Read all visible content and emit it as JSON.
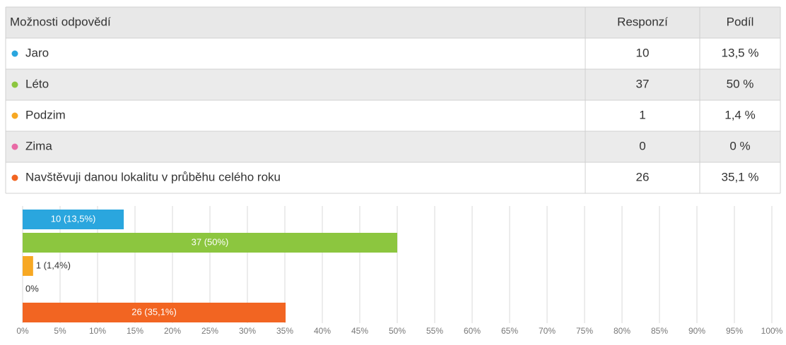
{
  "table": {
    "header": [
      "Možnosti odpovědí",
      "Responzí",
      "Podíl"
    ],
    "rows": [
      [
        "Jaro",
        10,
        "13,5 %"
      ],
      [
        "Léto",
        37,
        "50 %"
      ],
      [
        "Podzim",
        1,
        "1,4 %"
      ],
      [
        "Zima",
        0,
        "0 %"
      ],
      [
        "Navštěvuji danou lokalitu v průběhu celého roku",
        26,
        "35,1 %"
      ]
    ]
  },
  "chart_data": {
    "type": "hbar",
    "values": [
      13.5,
      50,
      1.4,
      0,
      35.1
    ],
    "value_labels": [
      "10 (13,5%)",
      "37 (50%)",
      "1 (1,4%)",
      "0%",
      "26 (35,1%)"
    ],
    "colors": [
      "#2aa6de",
      "#8cc63f",
      "#f7a823",
      "#e86aa5",
      "#f26522"
    ],
    "xlim": [
      0,
      100
    ],
    "xticks": [
      {
        "value": 0,
        "label": "0%"
      },
      {
        "value": 5,
        "label": "5%"
      },
      {
        "value": 10,
        "label": "10%"
      },
      {
        "value": 15,
        "label": "15%"
      },
      {
        "value": 20,
        "label": "20%"
      },
      {
        "value": 25,
        "label": "25%"
      },
      {
        "value": 30,
        "label": "30%"
      },
      {
        "value": 35,
        "label": "35%"
      },
      {
        "value": 40,
        "label": "40%"
      },
      {
        "value": 45,
        "label": "45%"
      },
      {
        "value": 50,
        "label": "50%"
      },
      {
        "value": 55,
        "label": "55%"
      },
      {
        "value": 60,
        "label": "60%"
      },
      {
        "value": 65,
        "label": "65%"
      },
      {
        "value": 70,
        "label": "70%"
      },
      {
        "value": 75,
        "label": "75%"
      },
      {
        "value": 80,
        "label": "80%"
      },
      {
        "value": 85,
        "label": "85%"
      },
      {
        "value": 90,
        "label": "90%"
      },
      {
        "value": 95,
        "label": "95%"
      },
      {
        "value": 100,
        "label": "100%"
      }
    ],
    "grid": true
  }
}
